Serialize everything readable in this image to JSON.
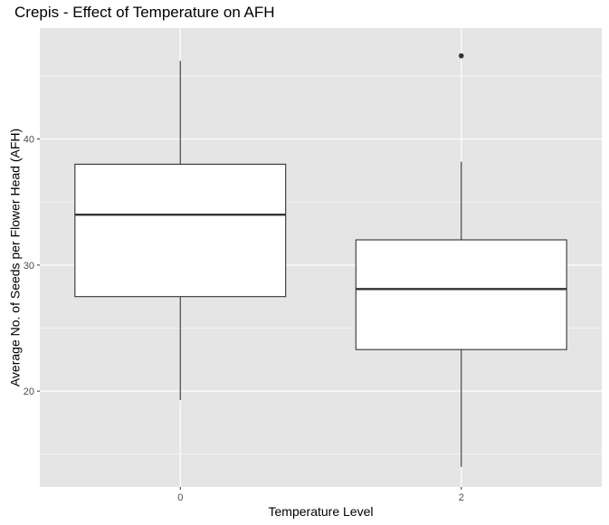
{
  "chart_data": {
    "type": "box",
    "title": "Crepis - Effect of Temperature on AFH",
    "xlabel": "Temperature Level",
    "ylabel": "Average No. of Seeds per Flower Head (AFH)",
    "categories": [
      "0",
      "2"
    ],
    "ylim": [
      12.4,
      48.8
    ],
    "y_ticks": [
      20,
      30,
      40
    ],
    "y_minor_ticks": [
      15,
      25,
      35,
      45
    ],
    "grid": true,
    "legend": "none",
    "boxes": [
      {
        "category": "0",
        "whisker_low": 19.3,
        "q1": 27.5,
        "median": 34.0,
        "q3": 38.0,
        "whisker_high": 46.2,
        "outliers": []
      },
      {
        "category": "2",
        "whisker_low": 14.0,
        "q1": 23.3,
        "median": 28.1,
        "q3": 32.0,
        "whisker_high": 38.2,
        "outliers": [
          46.6
        ]
      }
    ],
    "colors": {
      "panel": "#e5e5e5",
      "grid": "#ffffff",
      "box_fill": "#ffffff",
      "box_line": "#333333",
      "outlier": "#333333"
    }
  }
}
